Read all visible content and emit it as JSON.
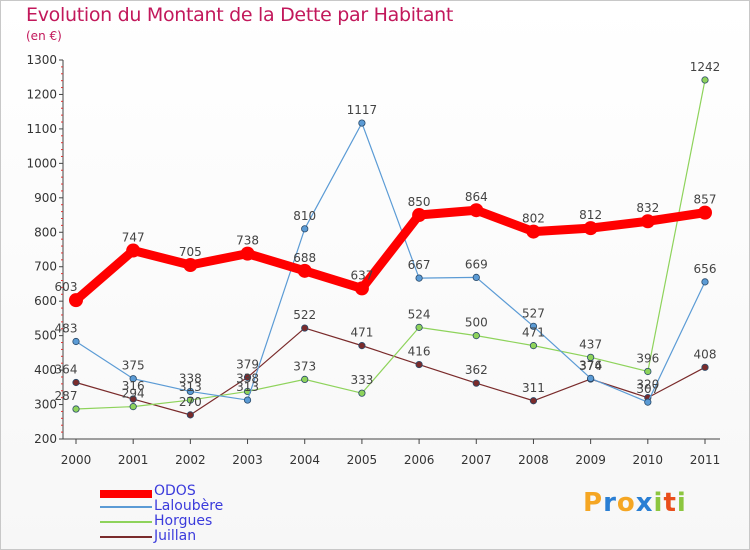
{
  "title": "Evolution du Montant de la Dette par Habitant",
  "subtitle": "(en €)",
  "logo": {
    "text": "Proxiti",
    "letters": [
      "P",
      "r",
      "o",
      "x",
      "i",
      "t",
      "i"
    ],
    "colors": [
      "#f5a623",
      "#2a7fd4",
      "#f5a623",
      "#2a7fd4",
      "#8cc63f",
      "#e94e1b",
      "#8cc63f"
    ]
  },
  "chart_data": {
    "type": "line",
    "categories": [
      "2000",
      "2001",
      "2002",
      "2003",
      "2004",
      "2005",
      "2006",
      "2007",
      "2008",
      "2009",
      "2010",
      "2011"
    ],
    "ylim": [
      200,
      1300
    ],
    "yticks": [
      200,
      300,
      400,
      500,
      600,
      700,
      800,
      900,
      1000,
      1100,
      1200,
      1300
    ],
    "grid": false,
    "legend_position": "bottom-left",
    "series": [
      {
        "name": "ODOS",
        "color": "#ff0000",
        "values": [
          603,
          747,
          705,
          738,
          688,
          637,
          850,
          864,
          802,
          812,
          832,
          857
        ]
      },
      {
        "name": "Laloubère",
        "color": "#5b9bd5",
        "values": [
          483,
          375,
          338,
          313,
          810,
          1117,
          667,
          669,
          527,
          376,
          307,
          656
        ]
      },
      {
        "name": "Horgues",
        "color": "#8ed35b",
        "values": [
          287,
          294,
          313,
          338,
          373,
          333,
          524,
          500,
          471,
          437,
          396,
          1242
        ]
      },
      {
        "name": "Juillan",
        "color": "#7a2b2b",
        "values": [
          364,
          316,
          270,
          379,
          522,
          471,
          416,
          362,
          311,
          374,
          320,
          408
        ]
      }
    ]
  }
}
